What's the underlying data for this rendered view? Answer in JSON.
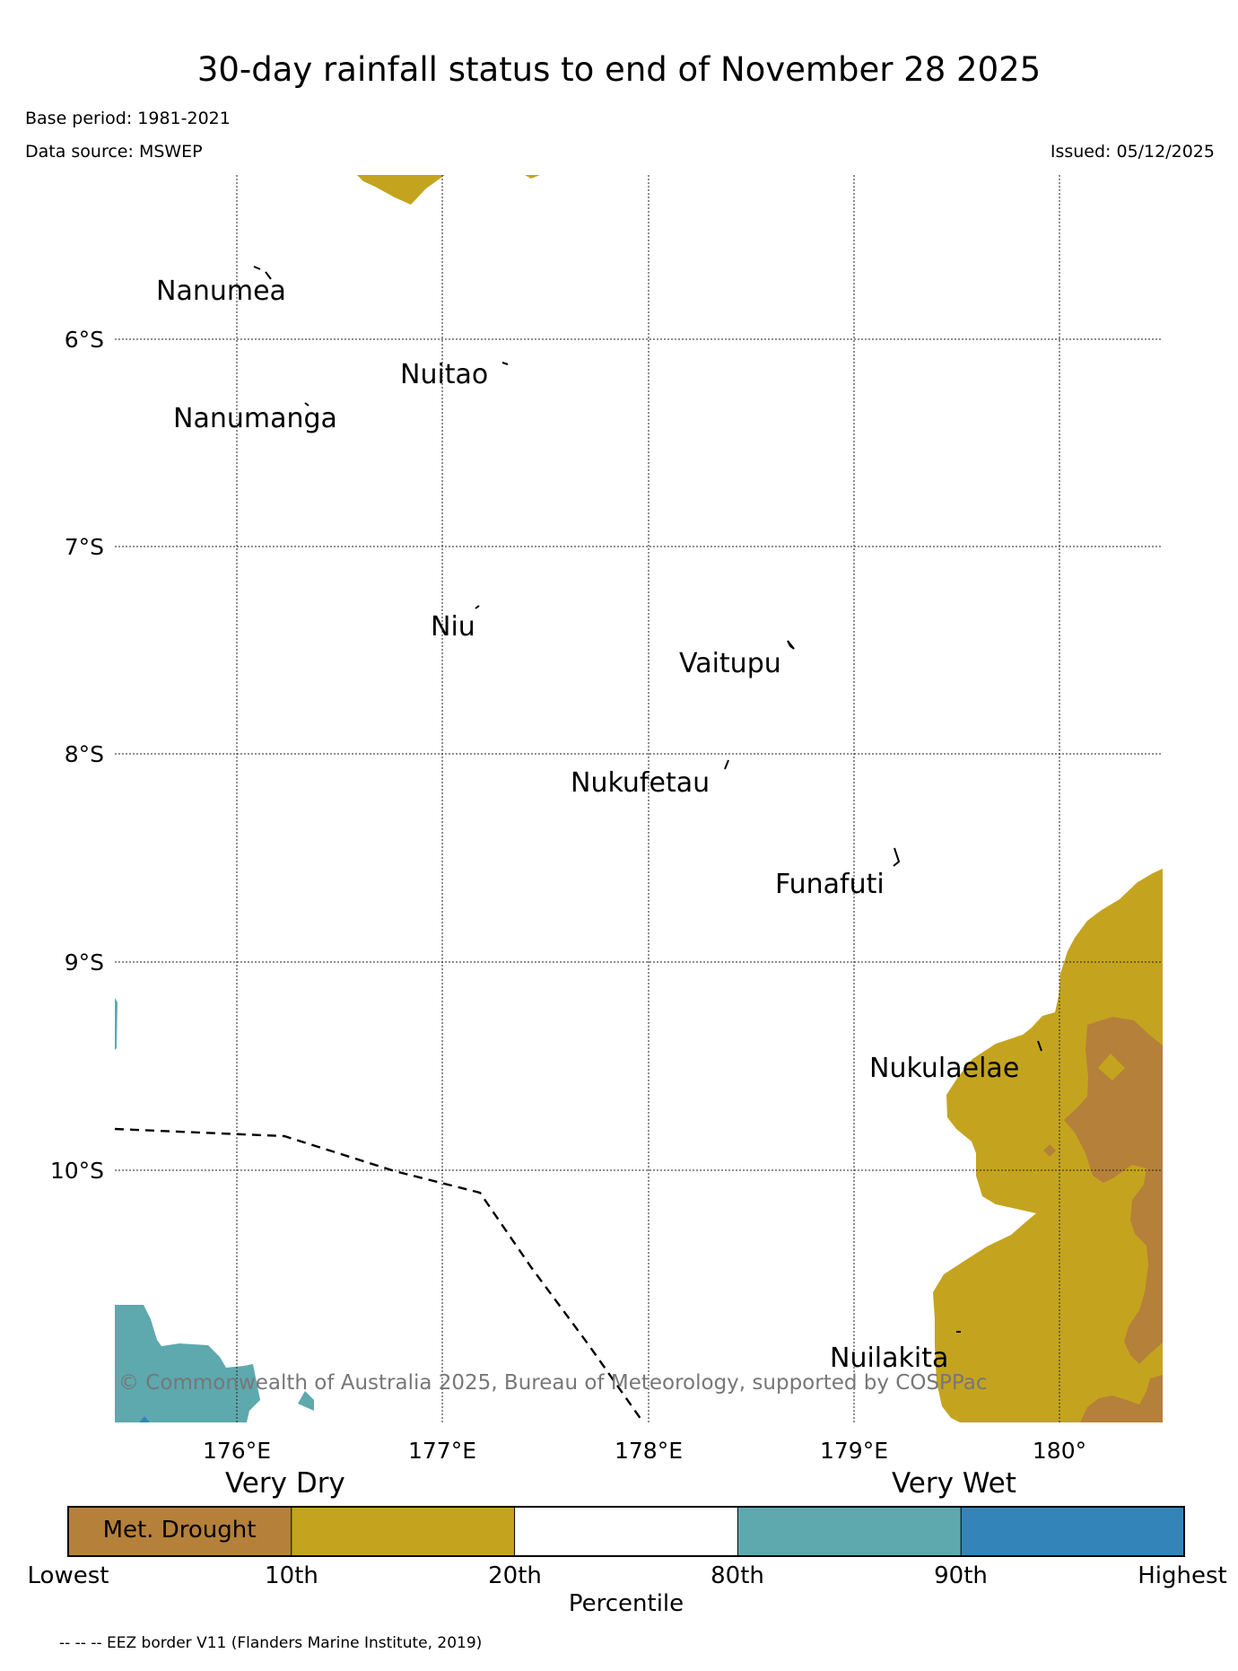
{
  "title": "30-day rainfall status to end of November 28 2025",
  "base_period": "Base period: 1981-2021",
  "data_source": "Data source: MSWEP",
  "issued": "Issued: 05/12/2025",
  "lat_labels": [
    "6°S",
    "7°S",
    "8°S",
    "9°S",
    "10°S"
  ],
  "lon_labels": [
    "176°E",
    "177°E",
    "178°E",
    "179°E",
    "180°"
  ],
  "islands": [
    "Nanumea",
    "Nuitao",
    "Nanumanga",
    "Niu",
    "Vaitupu",
    "Nukufetau",
    "Funafuti",
    "Nukulaelae",
    "Nuilakita"
  ],
  "credit": "© Commonwealth of Australia 2025, Bureau of Meteorology, supported by COSPPac",
  "colorbar": {
    "left_heading": "Very Dry",
    "right_heading": "Very Wet",
    "drought_label": "Met. Drought",
    "ticks": [
      "Lowest",
      "10th",
      "20th",
      "80th",
      "90th",
      "Highest"
    ],
    "axis_label": "Percentile",
    "colors": [
      "#b5803a",
      "#c4a41e",
      "#ffffff",
      "#5da9ae",
      "#3385b9"
    ]
  },
  "eez_note": "-- -- -- EEZ border V11 (Flanders Marine Institute, 2019)"
}
